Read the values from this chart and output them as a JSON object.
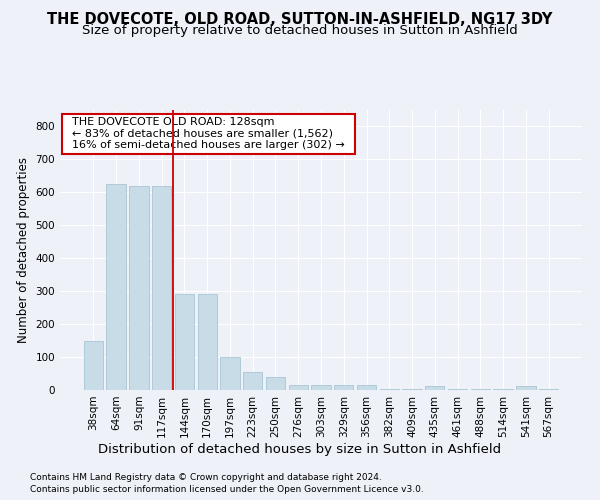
{
  "title": "THE DOVECOTE, OLD ROAD, SUTTON-IN-ASHFIELD, NG17 3DY",
  "subtitle": "Size of property relative to detached houses in Sutton in Ashfield",
  "xlabel": "Distribution of detached houses by size in Sutton in Ashfield",
  "ylabel": "Number of detached properties",
  "footnote1": "Contains HM Land Registry data © Crown copyright and database right 2024.",
  "footnote2": "Contains public sector information licensed under the Open Government Licence v3.0.",
  "annotation_line1": "  THE DOVECOTE OLD ROAD: 128sqm  ",
  "annotation_line2": "  ← 83% of detached houses are smaller (1,562)  ",
  "annotation_line3": "  16% of semi-detached houses are larger (302) →  ",
  "bar_color": "#c8dce8",
  "bar_edge_color": "#a0bfcf",
  "vline_color": "#cc0000",
  "vline_x_index": 3.5,
  "background_color": "#eef2f8",
  "plot_bg_color": "#eef2f8",
  "categories": [
    "38sqm",
    "64sqm",
    "91sqm",
    "117sqm",
    "144sqm",
    "170sqm",
    "197sqm",
    "223sqm",
    "250sqm",
    "276sqm",
    "303sqm",
    "329sqm",
    "356sqm",
    "382sqm",
    "409sqm",
    "435sqm",
    "461sqm",
    "488sqm",
    "514sqm",
    "541sqm",
    "567sqm"
  ],
  "values": [
    148,
    625,
    618,
    618,
    290,
    290,
    100,
    55,
    38,
    16,
    16,
    15,
    15,
    2,
    2,
    12,
    2,
    2,
    2,
    12,
    2
  ],
  "ylim": [
    0,
    850
  ],
  "yticks": [
    0,
    100,
    200,
    300,
    400,
    500,
    600,
    700,
    800
  ],
  "title_fontsize": 10.5,
  "subtitle_fontsize": 9.5,
  "xlabel_fontsize": 9.5,
  "ylabel_fontsize": 8.5,
  "annotation_fontsize": 8,
  "tick_fontsize": 7.5,
  "footnote_fontsize": 6.5
}
